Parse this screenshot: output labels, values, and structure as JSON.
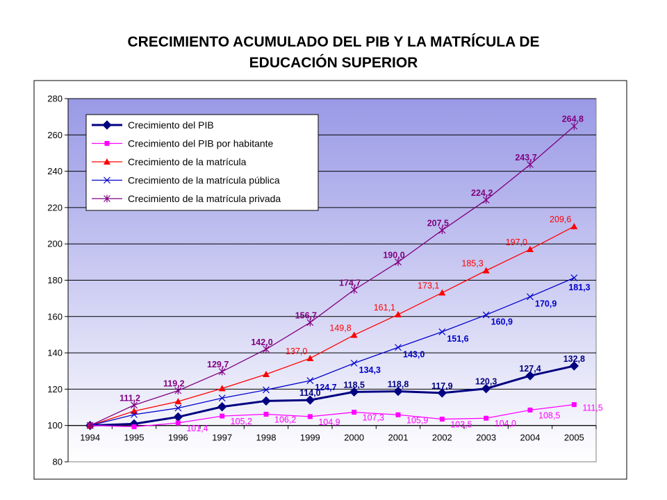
{
  "chart_data": {
    "type": "line",
    "title_lines": [
      "CRECIMIENTO ACUMULADO DEL PIB Y LA MATRÍCULA DE",
      "EDUCACIÓN SUPERIOR"
    ],
    "categories": [
      "1994",
      "1995",
      "1996",
      "1997",
      "1998",
      "1999",
      "2000",
      "2001",
      "2002",
      "2003",
      "2004",
      "2005"
    ],
    "ylim": [
      80,
      280
    ],
    "ytick_step": 20,
    "grid": true,
    "legend_position": "top-left",
    "series": [
      {
        "name": "Crecimiento del PIB",
        "color": "#000080",
        "marker": "diamond",
        "values": [
          100,
          100.9,
          104.7,
          110.3,
          113.5,
          114.0,
          118.5,
          118.8,
          117.9,
          120.3,
          127.4,
          132.8
        ],
        "labels": [
          "",
          "",
          "",
          "",
          "",
          "114,0",
          "118,5",
          "118,8",
          "117,9",
          "120,3",
          "127,4",
          "132,8"
        ]
      },
      {
        "name": "Crecimiento del PIB por habitante",
        "color": "#FF00FF",
        "marker": "square",
        "values": [
          100,
          99.3,
          101.4,
          105.2,
          106.2,
          104.9,
          107.3,
          105.9,
          103.5,
          104.0,
          108.5,
          111.5
        ],
        "labels": [
          "",
          "",
          "101,4",
          "105,2",
          "106,2",
          "104,9",
          "107,3",
          "105,9",
          "103,5",
          "104,0",
          "108,5",
          "111,5"
        ]
      },
      {
        "name": "Crecimiento de la matrícula",
        "color": "#FF0000",
        "marker": "triangle",
        "values": [
          100,
          107.9,
          113.2,
          120.4,
          128.2,
          137.0,
          149.8,
          161.1,
          173.1,
          185.3,
          197.0,
          209.6
        ],
        "labels": [
          "",
          "",
          "",
          "",
          "",
          "137,0",
          "149,8",
          "161,1",
          "173,1",
          "185,3",
          "197,0",
          "209,6"
        ]
      },
      {
        "name": "Crecimiento de la matrícula pública",
        "color": "#0000CC",
        "marker": "x",
        "values": [
          100,
          106.0,
          109.6,
          115.1,
          119.6,
          124.7,
          134.3,
          143.0,
          151.6,
          160.9,
          170.9,
          181.3
        ],
        "labels": [
          "",
          "",
          "",
          "",
          "",
          "124,7",
          "134,3",
          "143,0",
          "151,6",
          "160,9",
          "170,9",
          "181,3"
        ]
      },
      {
        "name": "Crecimiento de la matrícula privada",
        "color": "#800080",
        "marker": "star",
        "values": [
          100,
          111.2,
          119.2,
          129.7,
          142.0,
          156.7,
          174.7,
          190.0,
          207.5,
          224.2,
          243.7,
          264.8
        ],
        "labels": [
          "",
          "111,2",
          "119,2",
          "129,7",
          "142,0",
          "156,7",
          "174,7",
          "190,0",
          "207,5",
          "224,2",
          "243,7",
          "264,8"
        ]
      }
    ]
  }
}
